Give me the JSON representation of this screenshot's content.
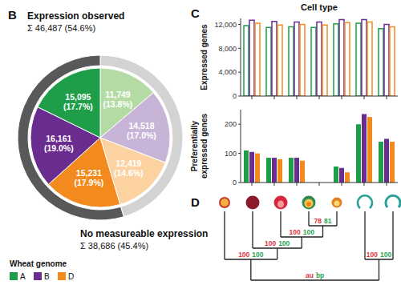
{
  "panel_labels": [
    "B",
    "C",
    "D"
  ],
  "chart_data": [
    {
      "type": "pie",
      "values": [
        11749,
        14518,
        12419,
        15231,
        16161,
        15095
      ],
      "value_labels": [
        "11,749 (13.8%)",
        "14,518 (17.0%)",
        "12,419 (14.6%)",
        "15,231 (17.9%)",
        "16,161 (19.0%)",
        "15,095 (17.7%)"
      ],
      "colors": [
        "#b5dba4",
        "#c8b4d6",
        "#fcd3a0",
        "#f28a1e",
        "#6a2c8e",
        "#1f9e4a"
      ],
      "data_labels": true,
      "outer_ring": {
        "values": [
          38686,
          46487
        ],
        "colors": [
          "#d3d3d3",
          "#595959"
        ],
        "labels": [
          [
            "No measureable expression",
            "Σ 38,686 (45.4%)"
          ],
          [
            "Expression observed",
            "Σ 46,487 (54.6%)"
          ]
        ]
      },
      "legend": "bottom-left",
      "legend_title": "Wheat genome",
      "legend_entries": [
        {
          "name": "A",
          "color": "#1f9e4a"
        },
        {
          "name": "B",
          "color": "#6a2c8e"
        },
        {
          "name": "D",
          "color": "#f28a1e"
        }
      ]
    },
    {
      "type": "bar",
      "title": "Cell type",
      "y_label": "Expressed genes",
      "categories": [
        null,
        null,
        null,
        null,
        null,
        null,
        null
      ],
      "series": [
        {
          "name": "A",
          "color": "#1f9e4a",
          "values": [
            11800,
            11500,
            11600,
            11500,
            12100,
            12200,
            11300
          ]
        },
        {
          "name": "B",
          "color": "#6a2c8e",
          "values": [
            12700,
            12500,
            12400,
            12400,
            12800,
            12800,
            12000
          ]
        },
        {
          "name": "D",
          "color": "#f28a1e",
          "values": [
            12200,
            11900,
            12000,
            11900,
            12300,
            12400,
            11600
          ]
        }
      ],
      "ylim": [
        0,
        13000
      ],
      "yticks": [
        0,
        {
          "value": 4000,
          "label": "4,000"
        },
        {
          "value": 8000,
          "label": "8,000"
        },
        {
          "value": 12000,
          "label": "12,000"
        }
      ]
    },
    {
      "type": "bar",
      "y_label": "Preferentially expressed genes",
      "categories": [
        null,
        null,
        null,
        null,
        null,
        null,
        null
      ],
      "series": [
        {
          "name": "A",
          "color": "#1f9e4a",
          "values": [
            110,
            85,
            85,
            0,
            55,
            200,
            140
          ]
        },
        {
          "name": "B",
          "color": "#6a2c8e",
          "values": [
            105,
            85,
            85,
            0,
            50,
            235,
            150
          ]
        },
        {
          "name": "D",
          "color": "#f28a1e",
          "values": [
            100,
            80,
            75,
            0,
            35,
            225,
            140
          ]
        }
      ],
      "ylim": [
        0,
        250
      ],
      "yticks": [
        0,
        100,
        200
      ]
    }
  ],
  "dendrogram": {
    "au": "au",
    "bp": "bp",
    "children": [
      {
        "au": 100,
        "bp": 100,
        "children": [
          0,
          {
            "au": 100,
            "bp": 100,
            "children": [
              1,
              {
                "au": 100,
                "bp": 100,
                "children": [
                  2,
                  {
                    "au": 78,
                    "bp": 81,
                    "children": [
                      3,
                      4
                    ]
                  }
                ]
              }
            ]
          }
        ]
      },
      {
        "au": 100,
        "bp": 100,
        "children": [
          5,
          6
        ]
      }
    ]
  }
}
